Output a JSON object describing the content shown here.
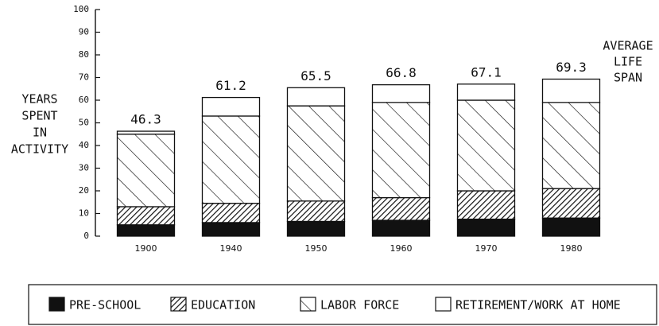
{
  "chart_data": {
    "type": "stacked_bar",
    "ylabel": [
      "YEARS",
      "SPENT",
      "IN",
      "ACTIVITY"
    ],
    "annotation": [
      "AVERAGE",
      "LIFE",
      "SPAN"
    ],
    "categories": [
      "1900",
      "1940",
      "1950",
      "1960",
      "1970",
      "1980"
    ],
    "series": [
      {
        "name": "PRE-SCHOOL",
        "color": "#111111",
        "pattern": "solid",
        "values": [
          5,
          6,
          6.5,
          7,
          7.5,
          8
        ]
      },
      {
        "name": "EDUCATION",
        "color": "#111111",
        "pattern": "hatch-dense",
        "values": [
          8,
          8.5,
          9,
          10,
          12.5,
          13
        ]
      },
      {
        "name": "LABOR FORCE",
        "color": "#111111",
        "pattern": "hatch-back",
        "values": [
          32,
          38.5,
          42,
          42,
          40,
          38
        ]
      },
      {
        "name": "RETIREMENT/WORK AT HOME",
        "color": "#ffffff",
        "pattern": "none",
        "values": [
          1.3,
          8.2,
          8,
          7.8,
          7.1,
          10.3
        ]
      }
    ],
    "totals": [
      46.3,
      61.2,
      65.5,
      66.8,
      67.1,
      69.3
    ],
    "ylim": [
      0,
      100
    ],
    "yticks": [
      0,
      10,
      20,
      30,
      40,
      50,
      60,
      70,
      80,
      90,
      100
    ],
    "grid": false,
    "legend": "bottom"
  }
}
